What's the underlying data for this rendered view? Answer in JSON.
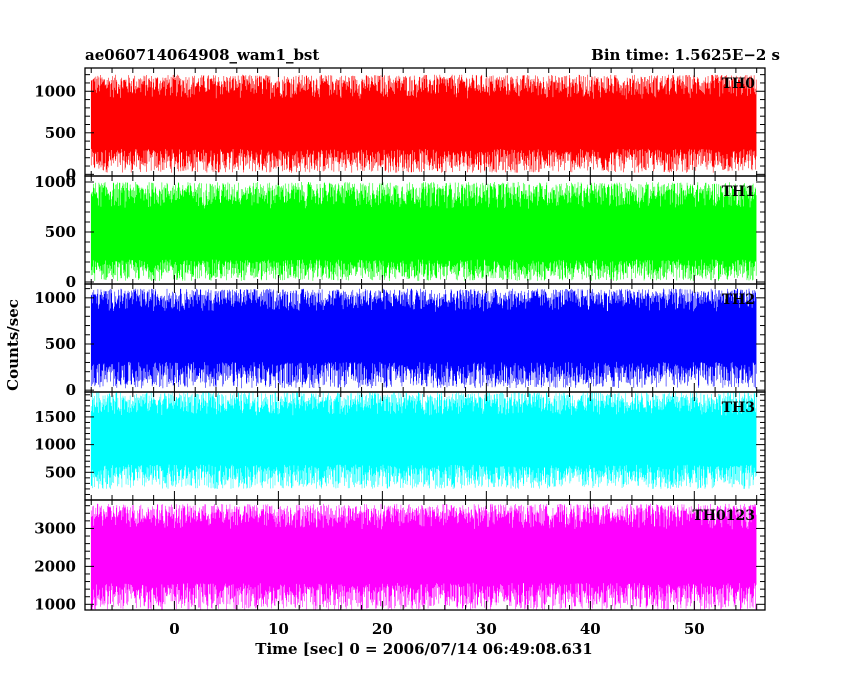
{
  "header": {
    "title": "ae060714064908_wam1_bst",
    "bin_time": "Bin time: 1.5625E−2 s"
  },
  "chart_data": {
    "type": "line",
    "xlabel": "Time [sec] 0 = 2006/07/14 06:49:08.631",
    "ylabel": "Counts/sec",
    "xlim": [
      -8.6,
      56.8
    ],
    "x_range": [
      -8.0,
      56.0
    ],
    "x_ticks": [
      0,
      10,
      20,
      30,
      40,
      50
    ],
    "panels": [
      {
        "name": "TH0",
        "color": "#ff0000",
        "ylim": [
          -20,
          1280
        ],
        "yticks": [
          0,
          500,
          1000
        ],
        "base": 540,
        "low": 20,
        "high": 1200
      },
      {
        "name": "TH1",
        "color": "#00ff00",
        "ylim": [
          -20,
          1060
        ],
        "yticks": [
          0,
          500,
          1000
        ],
        "base": 400,
        "low": 10,
        "high": 1000
      },
      {
        "name": "TH2",
        "color": "#0000ff",
        "ylim": [
          -20,
          1150
        ],
        "yticks": [
          0,
          500,
          1000
        ],
        "base": 540,
        "low": 20,
        "high": 1100
      },
      {
        "name": "TH3",
        "color": "#00ffff",
        "ylim": [
          0,
          1950
        ],
        "yticks": [
          500,
          1000,
          1500
        ],
        "base": 1000,
        "low": 200,
        "high": 1950
      },
      {
        "name": "TH0123",
        "color": "#ff00ff",
        "ylim": [
          850,
          3750
        ],
        "yticks": [
          1000,
          2000,
          3000
        ],
        "base": 2150,
        "low": 850,
        "high": 3650
      }
    ]
  }
}
